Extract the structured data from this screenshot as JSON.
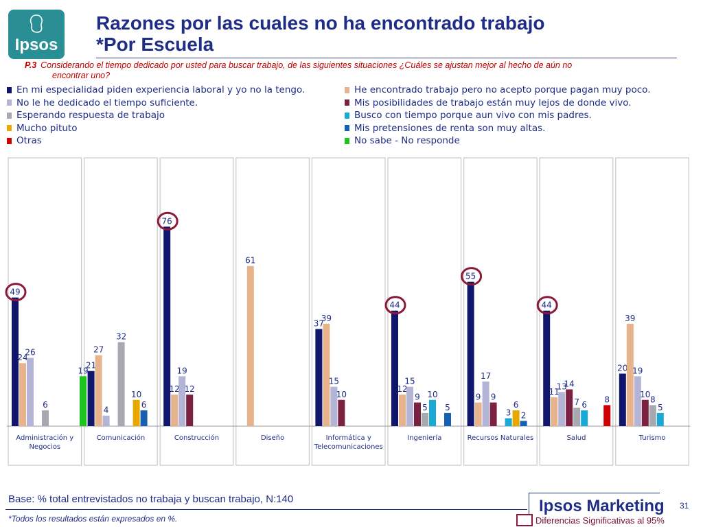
{
  "logo": {
    "text": "Ipsos"
  },
  "title": {
    "line1": "Razones por las cuales no ha encontrado trabajo",
    "line2": "*Por Escuela"
  },
  "question": {
    "number": "P.3",
    "line1": "Considerando el tiempo dedicado por usted  para buscar trabajo, de las siguientes situaciones ¿Cuáles se ajustan mejor al hecho de aún no",
    "line2": "encontrar uno?"
  },
  "footer": {
    "base": "Base: % total entrevistados no trabaja y buscan trabajo, N:140",
    "note": "*Todos los resultados están expresados en %.",
    "brand": "Ipsos Marketing",
    "page": "31",
    "significance": "Diferencias Significativas al 95%"
  },
  "chart_data": {
    "type": "bar",
    "ylim": [
      0,
      80
    ],
    "categories": [
      [
        "Administración y",
        "Negocios"
      ],
      [
        "Comunicación"
      ],
      [
        "Construcción"
      ],
      [
        "Diseño"
      ],
      [
        "Informática y",
        "Telecomunicaciones"
      ],
      [
        "Ingeniería"
      ],
      [
        "Recursos Naturales"
      ],
      [
        "Salud"
      ],
      [
        "Turismo"
      ]
    ],
    "series": [
      {
        "name": "En mi especialidad piden experiencia laboral y yo no la tengo.",
        "color": "#10166b",
        "values": [
          49,
          21,
          76,
          null,
          37,
          44,
          55,
          44,
          20
        ]
      },
      {
        "name": "He encontrado trabajo pero no acepto porque pagan muy poco.",
        "color": "#e6b38c",
        "values": [
          24,
          27,
          12,
          61,
          39,
          12,
          9,
          11,
          39
        ]
      },
      {
        "name": "No le he dedicado el tiempo suficiente.",
        "color": "#b3b4d6",
        "values": [
          26,
          4,
          19,
          null,
          15,
          15,
          17,
          13,
          19
        ]
      },
      {
        "name": "Mis posibilidades de trabajo están muy lejos de donde vivo.",
        "color": "#7a2040",
        "values": [
          null,
          null,
          12,
          null,
          10,
          9,
          9,
          14,
          10
        ]
      },
      {
        "name": "Esperando respuesta de trabajo",
        "color": "#a8a8b0",
        "values": [
          6,
          32,
          null,
          null,
          null,
          5,
          null,
          7,
          8
        ]
      },
      {
        "name": "Busco con tiempo porque aun vivo con mis padres.",
        "color": "#18a9d4",
        "values": [
          null,
          null,
          null,
          null,
          null,
          10,
          3,
          6,
          5
        ]
      },
      {
        "name": "Mucho pituto",
        "color": "#e8a800",
        "values": [
          null,
          10,
          null,
          null,
          null,
          null,
          6,
          null,
          null
        ]
      },
      {
        "name": "Mis pretensiones de renta son muy altas.",
        "color": "#1560b0",
        "values": [
          null,
          6,
          null,
          null,
          null,
          5,
          2,
          null,
          null
        ]
      },
      {
        "name": "Otras",
        "color": "#d00000",
        "values": [
          null,
          null,
          null,
          null,
          null,
          null,
          null,
          8,
          null
        ]
      },
      {
        "name": "No sabe - No responde",
        "color": "#1ec41e",
        "values": [
          19,
          null,
          null,
          null,
          null,
          null,
          null,
          null,
          null
        ]
      }
    ],
    "significant_circles": [
      [
        0,
        0
      ],
      [
        2,
        0
      ],
      [
        5,
        0
      ],
      [
        6,
        0
      ],
      [
        7,
        0
      ]
    ],
    "label_color": "#1f2d86",
    "circle_color": "#8b1a3a"
  }
}
